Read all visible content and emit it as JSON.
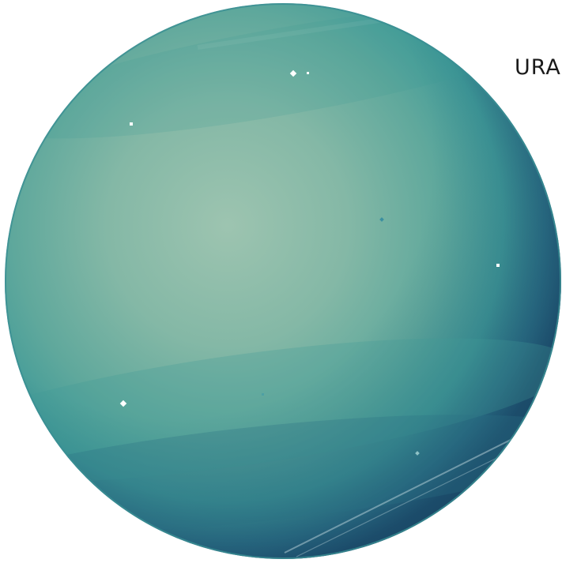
{
  "label": {
    "text": "URA"
  },
  "planet": {
    "name_icon": "planet-uranus-icon",
    "colors": {
      "highlight": "#9dc4b0",
      "mid": "#5fa89c",
      "teal": "#3f9a98",
      "deep": "#2a6f84",
      "shadow": "#1d4f6e",
      "rim": "#3a8e93"
    }
  },
  "stars": [
    {
      "id": "star-1"
    },
    {
      "id": "star-2"
    },
    {
      "id": "star-3"
    },
    {
      "id": "star-4"
    },
    {
      "id": "star-5"
    },
    {
      "id": "star-6"
    },
    {
      "id": "star-7"
    },
    {
      "id": "star-8"
    }
  ]
}
